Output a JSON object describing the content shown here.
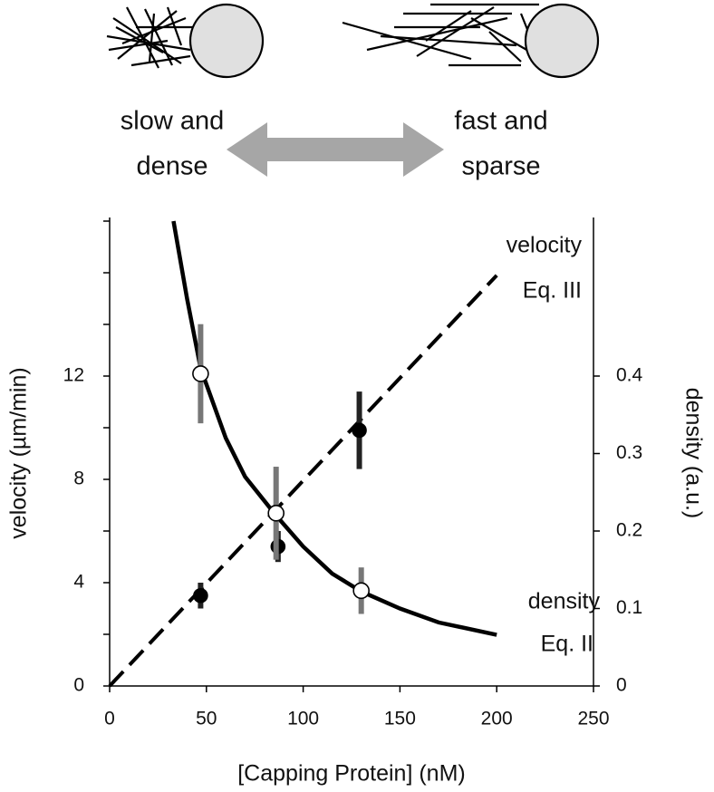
{
  "illustration": {
    "left_label": [
      "slow and",
      "dense"
    ],
    "right_label": [
      "fast and",
      "sparse"
    ]
  },
  "chart_data": {
    "type": "line",
    "x_label": "[Capping Protein] (nM)",
    "y_label": "velocity (µm/min)",
    "y2_label": "density (a.u.)",
    "xlim": [
      0,
      250
    ],
    "xticks": [
      0,
      50,
      100,
      150,
      200,
      250
    ],
    "ylim": [
      0,
      18
    ],
    "yticks": [
      0,
      4,
      8,
      12
    ],
    "yminor_ticks": [
      2,
      6,
      10,
      14,
      16,
      18
    ],
    "y2lim": [
      0,
      0.6
    ],
    "y2ticks": [
      0,
      0.1,
      0.2,
      0.3,
      0.4
    ],
    "annotations": [
      {
        "lines": [
          "velocity",
          "Eq. III"
        ]
      },
      {
        "lines": [
          "density",
          "Eq. II"
        ]
      }
    ],
    "series": [
      {
        "kind": "line",
        "dashed": true,
        "color": "#000000",
        "x": [
          0,
          200
        ],
        "values": [
          0,
          15.9
        ]
      },
      {
        "kind": "line",
        "dashed": false,
        "axis": "y2",
        "color": "#000000",
        "x": [
          33,
          40,
          47,
          60,
          70,
          86,
          100,
          115,
          130,
          150,
          170,
          200
        ],
        "values": [
          0.6,
          0.5,
          0.41,
          0.32,
          0.27,
          0.22,
          0.18,
          0.145,
          0.122,
          0.1,
          0.082,
          0.066
        ]
      },
      {
        "kind": "scatter",
        "marker": "filled",
        "color": "#000000",
        "error_color": "#222222",
        "x": [
          47,
          87,
          129
        ],
        "values": [
          3.5,
          5.4,
          9.9
        ],
        "errors": [
          0.5,
          0.6,
          1.5
        ]
      },
      {
        "kind": "scatter",
        "marker": "open",
        "axis": "y2",
        "color": "#000000",
        "error_color": "#777777",
        "x": [
          47,
          86,
          130
        ],
        "values": [
          0.403,
          0.223,
          0.123
        ],
        "errors": [
          0.064,
          0.06,
          0.03
        ]
      }
    ]
  }
}
